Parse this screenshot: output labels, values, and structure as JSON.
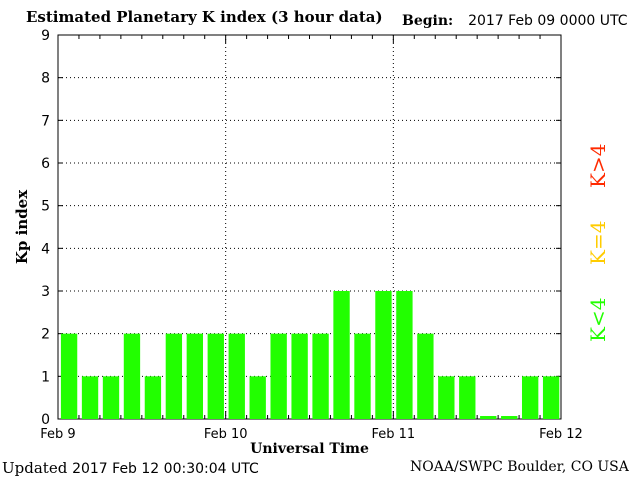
{
  "header": {
    "title": "Estimated Planetary K index (3 hour data)",
    "begin_label": "Begin:",
    "begin_value": "2017 Feb 09 0000 UTC"
  },
  "footer": {
    "updated_label": "Updated",
    "updated_value": "2017 Feb 12 00:30:04 UTC",
    "credit": "NOAA/SWPC Boulder, CO USA"
  },
  "legend": [
    {
      "label": "K>4",
      "color": "#ff2a00"
    },
    {
      "label": "K=4",
      "color": "#ffcc00"
    },
    {
      "label": "K<4",
      "color": "#22ff00"
    }
  ],
  "chart_data": {
    "type": "bar",
    "title": "Estimated Planetary K index (3 hour data)",
    "xlabel": "Universal Time",
    "ylabel": "Kp index",
    "ylim": [
      0,
      9
    ],
    "yticks": [
      0,
      1,
      2,
      3,
      4,
      5,
      6,
      7,
      8,
      9
    ],
    "xticks": [
      "Feb 9",
      "Feb 10",
      "Feb 11",
      "Feb 12"
    ],
    "bar_color": "#22ff00",
    "grid": true,
    "series": [
      {
        "values": [
          2,
          1,
          1,
          2,
          1,
          2,
          2,
          2,
          2,
          1,
          2,
          2,
          2,
          3,
          2,
          3,
          3,
          2,
          1,
          1,
          0.07,
          0.07,
          1,
          1
        ]
      }
    ]
  }
}
